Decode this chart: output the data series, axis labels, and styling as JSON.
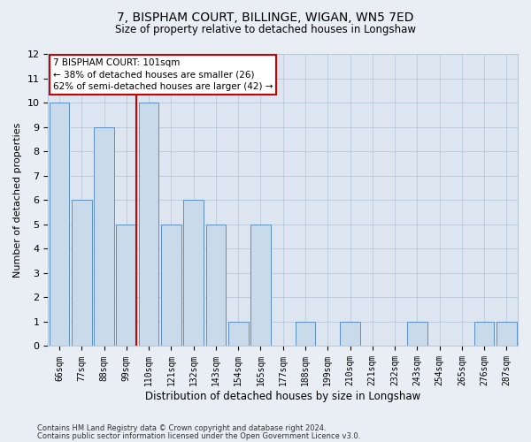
{
  "title": "7, BISPHAM COURT, BILLINGE, WIGAN, WN5 7ED",
  "subtitle": "Size of property relative to detached houses in Longshaw",
  "xlabel": "Distribution of detached houses by size in Longshaw",
  "ylabel": "Number of detached properties",
  "categories": [
    "66sqm",
    "77sqm",
    "88sqm",
    "99sqm",
    "110sqm",
    "121sqm",
    "132sqm",
    "143sqm",
    "154sqm",
    "165sqm",
    "177sqm",
    "188sqm",
    "199sqm",
    "210sqm",
    "221sqm",
    "232sqm",
    "243sqm",
    "254sqm",
    "265sqm",
    "276sqm",
    "287sqm"
  ],
  "values": [
    10,
    6,
    9,
    5,
    10,
    5,
    6,
    5,
    1,
    5,
    0,
    1,
    0,
    1,
    0,
    0,
    1,
    0,
    0,
    1,
    1
  ],
  "bar_color": "#c9daea",
  "bar_edge_color": "#5b8fc9",
  "highlight_index": 3,
  "highlight_line_color": "#cc0000",
  "annotation_text": "7 BISPHAM COURT: 101sqm\n← 38% of detached houses are smaller (26)\n62% of semi-detached houses are larger (42) →",
  "annotation_box_color": "#ffffff",
  "annotation_box_edge": "#cc0000",
  "ylim": [
    0,
    12
  ],
  "yticks": [
    0,
    1,
    2,
    3,
    4,
    5,
    6,
    7,
    8,
    9,
    10,
    11,
    12
  ],
  "footer_line1": "Contains HM Land Registry data © Crown copyright and database right 2024.",
  "footer_line2": "Contains public sector information licensed under the Open Government Licence v3.0.",
  "bg_color": "#e8eef4",
  "plot_bg_color": "#dde6f0",
  "grid_color": "#b8c8d8"
}
